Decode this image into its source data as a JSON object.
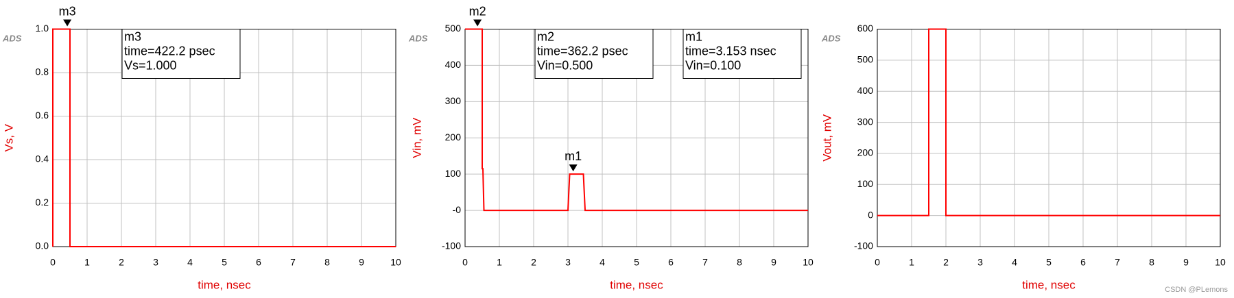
{
  "chart_data": [
    {
      "type": "line",
      "logo": "ADS",
      "xlabel": "time, nsec",
      "ylabel": "Vs, V",
      "color": "#ff0000",
      "grid": true,
      "xlim": [
        0,
        10
      ],
      "xticks": [
        0,
        1,
        2,
        3,
        4,
        5,
        6,
        7,
        8,
        9,
        10
      ],
      "ylim": [
        0,
        1
      ],
      "yticks": [
        {
          "value": 0,
          "label": "0.0"
        },
        0.2,
        0.4,
        0.6,
        0.8,
        {
          "value": 1,
          "label": "1.0"
        }
      ],
      "x": [
        0,
        0,
        0.5,
        0.5,
        10
      ],
      "values": [
        0,
        1,
        1,
        0,
        0
      ],
      "markers": [
        {
          "name": "m3",
          "x": 0.4222,
          "value": 1,
          "lines": [
            "m3",
            "time=422.2 psec",
            "Vs=1.000"
          ]
        }
      ]
    },
    {
      "type": "line",
      "logo": "ADS",
      "xlabel": "time, nsec",
      "ylabel": "Vin, mV",
      "color": "#ff0000",
      "grid": true,
      "xlim": [
        0,
        10
      ],
      "xticks": [
        0,
        1,
        2,
        3,
        4,
        5,
        6,
        7,
        8,
        9,
        10
      ],
      "ylim": [
        -100,
        500
      ],
      "yticks": [
        -100,
        {
          "value": 0,
          "label": "-0"
        },
        100,
        200,
        300,
        400,
        500
      ],
      "x": [
        0,
        0.5,
        0.5,
        0.52,
        0.55,
        3.0,
        3.05,
        3.45,
        3.5,
        10
      ],
      "values": [
        500,
        500,
        115,
        115,
        0,
        0,
        100,
        100,
        0,
        0
      ],
      "markers": [
        {
          "name": "m2",
          "x": 0.3622,
          "value": 500,
          "lines": [
            "m2",
            "time=362.2 psec",
            "Vin=0.500"
          ]
        },
        {
          "name": "m1",
          "x": 3.153,
          "value": 100,
          "lines": [
            "m1",
            "time=3.153 nsec",
            "Vin=0.100"
          ]
        }
      ]
    },
    {
      "type": "line",
      "logo": "ADS",
      "xlabel": "time, nsec",
      "ylabel": "Vout, mV",
      "color": "#ff0000",
      "grid": true,
      "xlim": [
        0,
        10
      ],
      "xticks": [
        0,
        1,
        2,
        3,
        4,
        5,
        6,
        7,
        8,
        9,
        10
      ],
      "ylim": [
        -100,
        600
      ],
      "yticks": [
        -100,
        0,
        100,
        200,
        300,
        400,
        500,
        600
      ],
      "x": [
        0,
        1.5,
        1.5,
        2,
        2,
        10
      ],
      "values": [
        0,
        0,
        600,
        600,
        0,
        0
      ],
      "markers": []
    }
  ],
  "watermark": "CSDN @PLemons"
}
